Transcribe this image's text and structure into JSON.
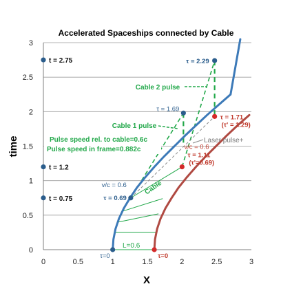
{
  "chart_data": {
    "type": "line",
    "title": "Accelerated Spaceships connected by Cable",
    "xlabel": "X",
    "ylabel": "time",
    "xlim": [
      0,
      3
    ],
    "ylim": [
      0,
      3
    ],
    "xticks": [
      "0",
      "0.5",
      "1",
      "1.5",
      "2",
      "2.5",
      "3"
    ],
    "yticks": [
      "0",
      "0.5",
      "1",
      "1.5",
      "2",
      "2.5",
      "3"
    ],
    "grid": "horizontal",
    "colors": {
      "ship1": "#3d7ab8",
      "ship2": "#b04a42",
      "cable": "#22a84a",
      "laser": "#8a8a8a",
      "tdot": "#2b5d8c"
    },
    "series": [
      {
        "key": "ship1",
        "x": [
          1.0,
          1.01,
          1.04,
          1.09,
          1.16,
          1.25,
          1.35,
          1.47,
          1.6,
          1.74,
          1.89,
          2.04,
          2.2,
          2.36,
          2.53,
          2.7,
          2.84
        ],
        "y": [
          0.0,
          0.15,
          0.3,
          0.45,
          0.6,
          0.75,
          0.9,
          1.05,
          1.2,
          1.35,
          1.5,
          1.65,
          1.8,
          1.95,
          2.1,
          2.25,
          3.05
        ]
      },
      {
        "key": "ship2",
        "x": [
          1.6,
          1.61,
          1.64,
          1.69,
          1.76,
          1.85,
          1.95,
          2.07,
          2.2,
          2.34,
          2.49,
          2.64,
          2.8,
          2.97
        ],
        "y": [
          0.0,
          0.15,
          0.3,
          0.45,
          0.6,
          0.75,
          0.9,
          1.05,
          1.2,
          1.35,
          1.5,
          1.65,
          1.8,
          1.95
        ]
      }
    ],
    "cables": [
      [
        [
          1.0,
          0.0
        ],
        [
          1.6,
          0.0
        ]
      ],
      [
        [
          1.03,
          0.25
        ],
        [
          1.63,
          0.25
        ]
      ],
      [
        [
          1.08,
          0.4
        ],
        [
          1.66,
          0.52
        ]
      ],
      [
        [
          1.15,
          0.56
        ],
        [
          1.72,
          0.74
        ]
      ],
      [
        [
          1.26,
          0.75
        ],
        [
          2.0,
          1.2
        ]
      ]
    ],
    "pulses": [
      {
        "name": "Cable 1 pulse",
        "points": [
          [
            1.26,
            0.75
          ],
          [
            2.02,
            1.98
          ]
        ]
      },
      {
        "name": "Cable 2 pulse",
        "points": [
          [
            2.0,
            1.2
          ],
          [
            2.47,
            2.74
          ]
        ]
      }
    ],
    "pulse_verticals": [
      {
        "x": 2.02,
        "y1": 1.98,
        "y2": 1.5
      },
      {
        "x": 2.47,
        "y1": 2.74,
        "y2": 1.93
      }
    ],
    "laser": {
      "points": [
        [
          1.26,
          0.75
        ],
        [
          2.47,
          1.93
        ]
      ]
    },
    "points": [
      {
        "ship": "ship1",
        "x": 1.0,
        "y": 0.0,
        "label": "τ=0"
      },
      {
        "ship": "ship1",
        "x": 1.26,
        "y": 0.75,
        "label": "v/c = 0.6",
        "label2": "τ = 0.69"
      },
      {
        "ship": "ship1",
        "x": 2.02,
        "y": 1.98,
        "label": "τ = 1.69"
      },
      {
        "ship": "ship1",
        "x": 2.47,
        "y": 2.74,
        "label": "τ = 2.29"
      },
      {
        "ship": "ship2",
        "x": 1.6,
        "y": 0.0,
        "label": "τ=0"
      },
      {
        "ship": "ship2",
        "x": 2.0,
        "y": 1.2,
        "label": "v/c = 0.6",
        "label2": "τ = 1.11",
        "label3": "(τ'=0.69)"
      },
      {
        "ship": "ship2",
        "x": 2.47,
        "y": 1.93,
        "label": "τ = 1.71",
        "label2": "(τ' = 1.29)"
      }
    ],
    "time_markers": [
      {
        "y": 2.75,
        "label": "t = 2.75"
      },
      {
        "y": 1.2,
        "label": "t = 1.2"
      },
      {
        "y": 0.75,
        "label": "t = 0.75"
      }
    ],
    "annotations": {
      "cable2_pulse": "Cable 2 pulse",
      "cable1_pulse": "Cable 1 pulse",
      "pulse_speed_cable": "Pulse speed rel. to cable=0.6c",
      "pulse_speed_frame": "Pulse speed in frame=0.882c",
      "laser": "Laser pulse+",
      "cable": "Cable",
      "length": "L=0.6"
    }
  }
}
